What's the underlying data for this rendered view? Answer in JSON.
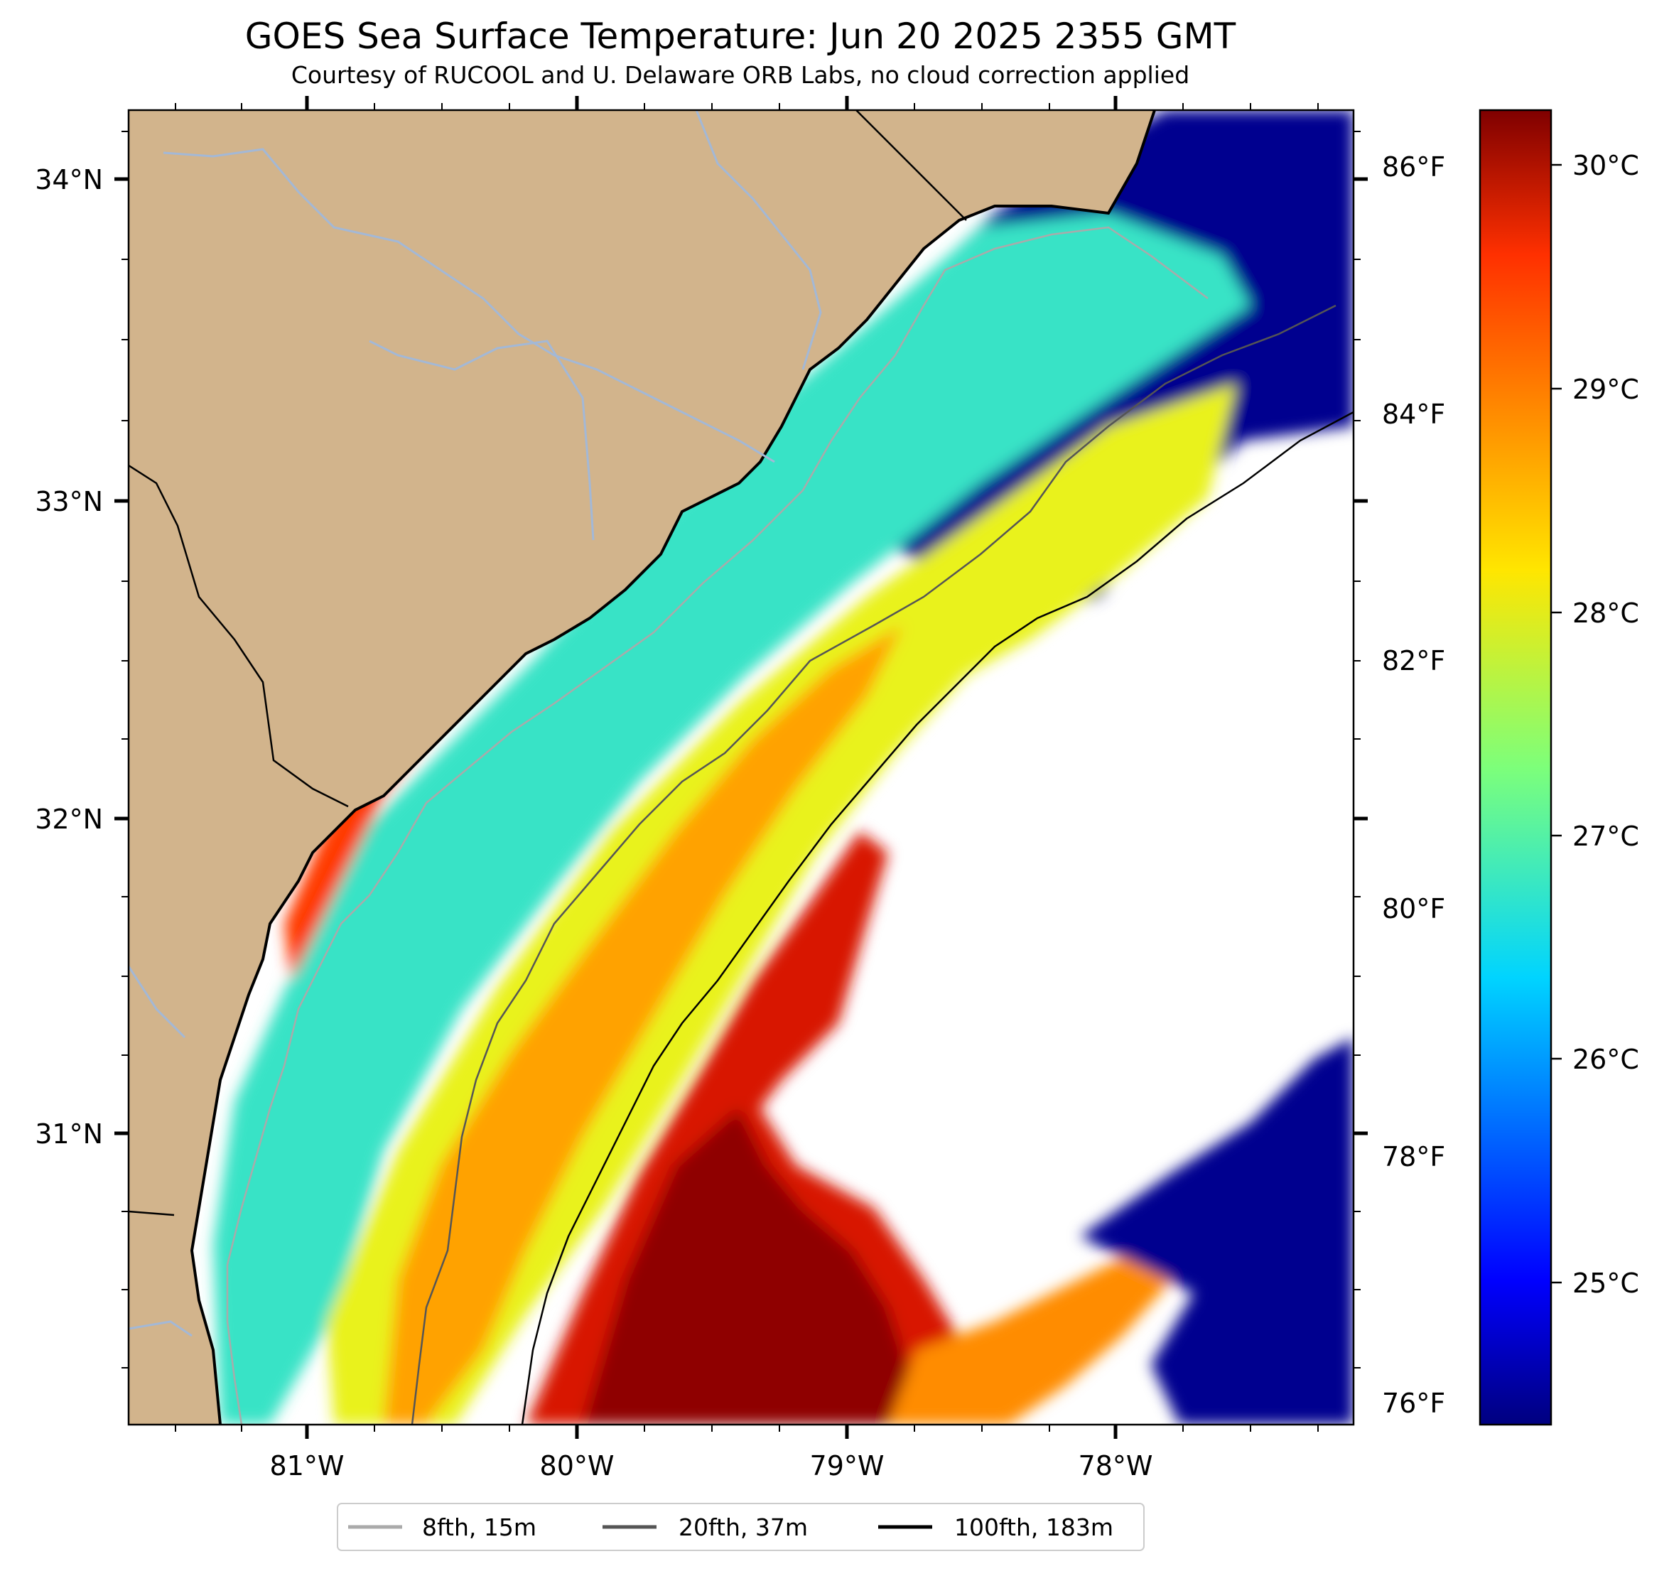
{
  "title": "GOES Sea Surface Temperature: Jun 20 2025 2355 GMT",
  "subtitle": "Courtesy of RUCOOL and U. Delaware ORB Labs, no cloud correction applied",
  "map": {
    "lon_labels": [
      "81°W",
      "80°W",
      "79°W",
      "78°W"
    ],
    "lat_labels": [
      "34°N",
      "33°N",
      "32°N",
      "31°N"
    ],
    "fahrenheit_labels": [
      "86°F",
      "84°F",
      "82°F",
      "80°F",
      "78°F",
      "76°F"
    ],
    "colors": {
      "land": "#d2b48c",
      "no_data": "#ffffff",
      "coast": "#000000",
      "river": "#a3b8d6"
    }
  },
  "colorbar": {
    "labels": [
      "30°C",
      "29°C",
      "28°C",
      "27°C",
      "26°C",
      "25°C"
    ],
    "colormap": "jet",
    "units": "°C"
  },
  "legend": {
    "items": [
      {
        "label": "8fth, 15m",
        "color": "#aaaaaa"
      },
      {
        "label": "20fth, 37m",
        "color": "#555555"
      },
      {
        "label": "100fth, 183m",
        "color": "#000000"
      }
    ]
  }
}
